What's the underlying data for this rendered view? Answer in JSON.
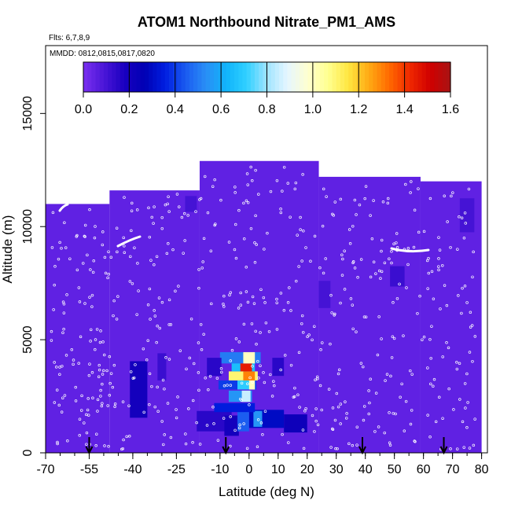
{
  "chart_data": {
    "type": "heatmap",
    "title": "ATOM1 Northbound Nitrate_PM1_AMS",
    "flights_note": "Flts: 6,7,8,9",
    "dates_note": "MMDD: 0812,0815,0817,0820",
    "xlabel": "Latitude (deg N)",
    "ylabel": "Altitude (m)",
    "xlim": [
      -70,
      82
    ],
    "ylim": [
      0,
      18000
    ],
    "x_ticks": [
      -70,
      -55,
      -40,
      -25,
      -10,
      0,
      10,
      20,
      30,
      40,
      50,
      60,
      70,
      80
    ],
    "y_ticks": [
      0,
      5000,
      10000,
      15000
    ],
    "colorbar": {
      "min": 0.0,
      "max": 1.6,
      "ticks": [
        "0.0",
        "0.2",
        "0.4",
        "0.6",
        "0.8",
        "1.0",
        "1.2",
        "1.4",
        "1.6"
      ],
      "colors": [
        "#7a2ff0",
        "#4b16d8",
        "#1a00c0",
        "#0000b4",
        "#001ee0",
        "#1a5af0",
        "#2a8ef5",
        "#10b4fa",
        "#30d0ff",
        "#9fe4ff",
        "#e6f6ff",
        "#ffffd0",
        "#ffff90",
        "#ffe640",
        "#ffaa14",
        "#ff6a00",
        "#f02800",
        "#d00000",
        "#a81414"
      ]
    },
    "background_value": 0.05,
    "data_extent": [
      {
        "lat_start": -70,
        "lat_end": -48,
        "alt_top": 11000
      },
      {
        "lat_start": -48,
        "lat_end": -17,
        "alt_top": 11600
      },
      {
        "lat_start": -17,
        "lat_end": 24,
        "alt_top": 12900
      },
      {
        "lat_start": 24,
        "lat_end": 59,
        "alt_top": 12200
      },
      {
        "lat_start": 59,
        "lat_end": 80,
        "alt_top": 12000
      }
    ],
    "cells": [
      {
        "lat": -38,
        "lat_w": 6,
        "alt": 2800,
        "alt_h": 2500,
        "value": 0.2
      },
      {
        "lat": -30,
        "lat_w": 3,
        "alt": 3800,
        "alt_h": 1200,
        "value": 0.12
      },
      {
        "lat": -12,
        "lat_w": 12,
        "alt": 1400,
        "alt_h": 900,
        "value": 0.15
      },
      {
        "lat": -6,
        "lat_w": 5,
        "alt": 1200,
        "alt_h": 900,
        "value": 0.2
      },
      {
        "lat": 6,
        "lat_w": 12,
        "alt": 1500,
        "alt_h": 800,
        "value": 0.3
      },
      {
        "lat": 16,
        "lat_w": 8,
        "alt": 1300,
        "alt_h": 800,
        "value": 0.22
      },
      {
        "lat": -2,
        "lat_w": 4,
        "alt": 1400,
        "alt_h": 900,
        "value": 0.45
      },
      {
        "lat": 3,
        "lat_w": 3,
        "alt": 1500,
        "alt_h": 700,
        "value": 0.55
      },
      {
        "lat": -5,
        "lat_w": 14,
        "alt": 2000,
        "alt_h": 400,
        "value": 0.35
      },
      {
        "lat": -3,
        "lat_w": 8,
        "alt": 2500,
        "alt_h": 500,
        "value": 0.55
      },
      {
        "lat": -1,
        "lat_w": 3,
        "alt": 2500,
        "alt_h": 500,
        "value": 0.85
      },
      {
        "lat": -4,
        "lat_w": 13,
        "alt": 3000,
        "alt_h": 400,
        "value": 0.4
      },
      {
        "lat": -1,
        "lat_w": 6,
        "alt": 3000,
        "alt_h": 400,
        "value": 0.7
      },
      {
        "lat": 1,
        "lat_w": 2,
        "alt": 3000,
        "alt_h": 400,
        "value": 1.0
      },
      {
        "lat": -2,
        "lat_w": 10,
        "alt": 3400,
        "alt_h": 400,
        "value": 1.1
      },
      {
        "lat": 0,
        "lat_w": 4,
        "alt": 3400,
        "alt_h": 400,
        "value": 1.3
      },
      {
        "lat": -2,
        "lat_w": 8,
        "alt": 3800,
        "alt_h": 400,
        "value": 0.65
      },
      {
        "lat": -1,
        "lat_w": 4,
        "alt": 3800,
        "alt_h": 400,
        "value": 1.45
      },
      {
        "lat": -3,
        "lat_w": 14,
        "alt": 4200,
        "alt_h": 500,
        "value": 0.5
      },
      {
        "lat": 0,
        "lat_w": 4,
        "alt": 4200,
        "alt_h": 500,
        "value": 1.0
      },
      {
        "lat": -12,
        "lat_w": 5,
        "alt": 3800,
        "alt_h": 800,
        "value": 0.15
      },
      {
        "lat": 10,
        "lat_w": 4,
        "alt": 3800,
        "alt_h": 800,
        "value": 0.15
      },
      {
        "lat": 51,
        "lat_w": 5,
        "alt": 7800,
        "alt_h": 900,
        "value": 0.12
      },
      {
        "lat": 26,
        "lat_w": 4,
        "alt": 7000,
        "alt_h": 1200,
        "value": 0.1
      },
      {
        "lat": -20,
        "lat_w": 4,
        "alt": 11000,
        "alt_h": 700,
        "value": 0.1
      },
      {
        "lat": 75,
        "lat_w": 5,
        "alt": 10500,
        "alt_h": 1500,
        "value": 0.1
      }
    ],
    "flight_track_markers_lat": [
      -55,
      -8,
      39,
      67
    ]
  }
}
